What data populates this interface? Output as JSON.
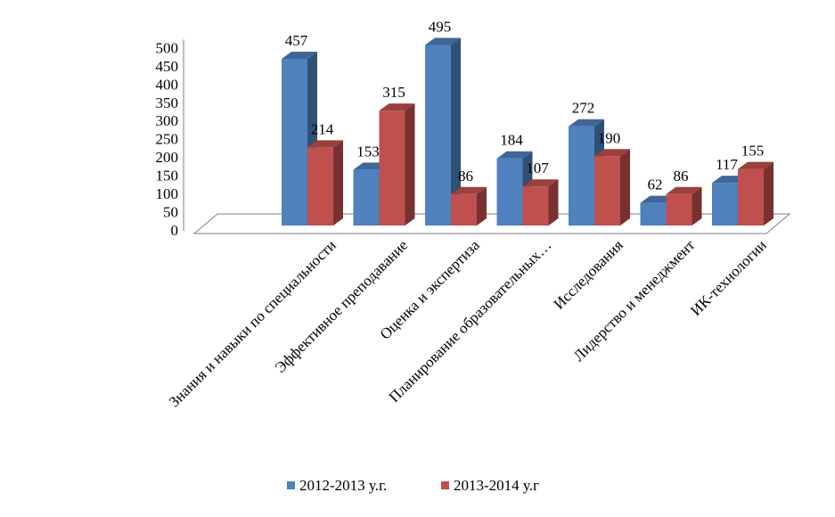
{
  "chart_data": {
    "type": "bar",
    "style": "3d-clustered-column",
    "categories": [
      "Знания и навыки по специальности",
      "Эффективное преподавание",
      "Оценка и экспертиза",
      "Планирование образовательных…",
      "Исследования",
      "Лидерство и менеджмент",
      "ИК-технологии"
    ],
    "series": [
      {
        "name": "2012-2013 у.г.",
        "color": "#4f81bd",
        "values": [
          457,
          153,
          495,
          184,
          272,
          62,
          117
        ]
      },
      {
        "name": "2013-2014 у.г",
        "color": "#c0504d",
        "values": [
          214,
          315,
          86,
          107,
          190,
          86,
          155
        ]
      }
    ],
    "y_ticks": [
      "0",
      "50",
      "100",
      "150",
      "200",
      "250",
      "300",
      "350",
      "400",
      "450",
      "500"
    ],
    "ylim": [
      0,
      500
    ],
    "grid": false,
    "legend_position": "bottom"
  }
}
